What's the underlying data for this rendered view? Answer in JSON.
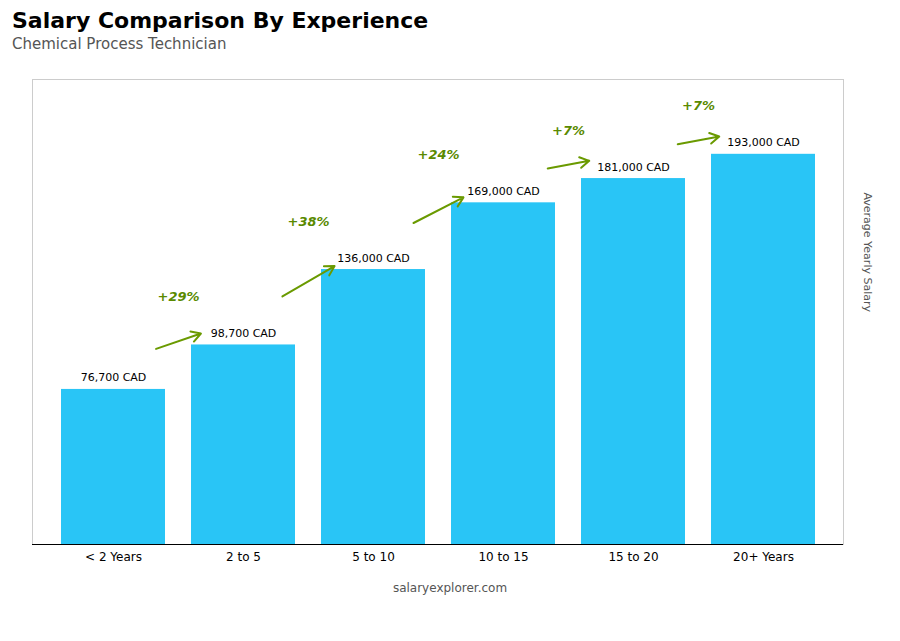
{
  "chart_data": {
    "type": "bar",
    "title": "Salary Comparison By Experience",
    "subtitle": "Chemical Process Technician",
    "ylabel": "Average Yearly Salary",
    "source": "salaryexplorer.com",
    "categories": [
      "< 2 Years",
      "2 to 5",
      "5 to 10",
      "10 to 15",
      "15 to 20",
      "20+ Years"
    ],
    "values": [
      76700,
      98700,
      136000,
      169000,
      181000,
      193000
    ],
    "value_labels": [
      "76,700 CAD",
      "98,700 CAD",
      "136,000 CAD",
      "169,000 CAD",
      "181,000 CAD",
      "193,000 CAD"
    ],
    "data_labels": true,
    "annotations": [
      "+29%",
      "+38%",
      "+24%",
      "+7%",
      "+7%"
    ],
    "color": "#29c5f6",
    "ylim": [
      0,
      230000
    ],
    "tick_labels": "x",
    "grid": false
  }
}
